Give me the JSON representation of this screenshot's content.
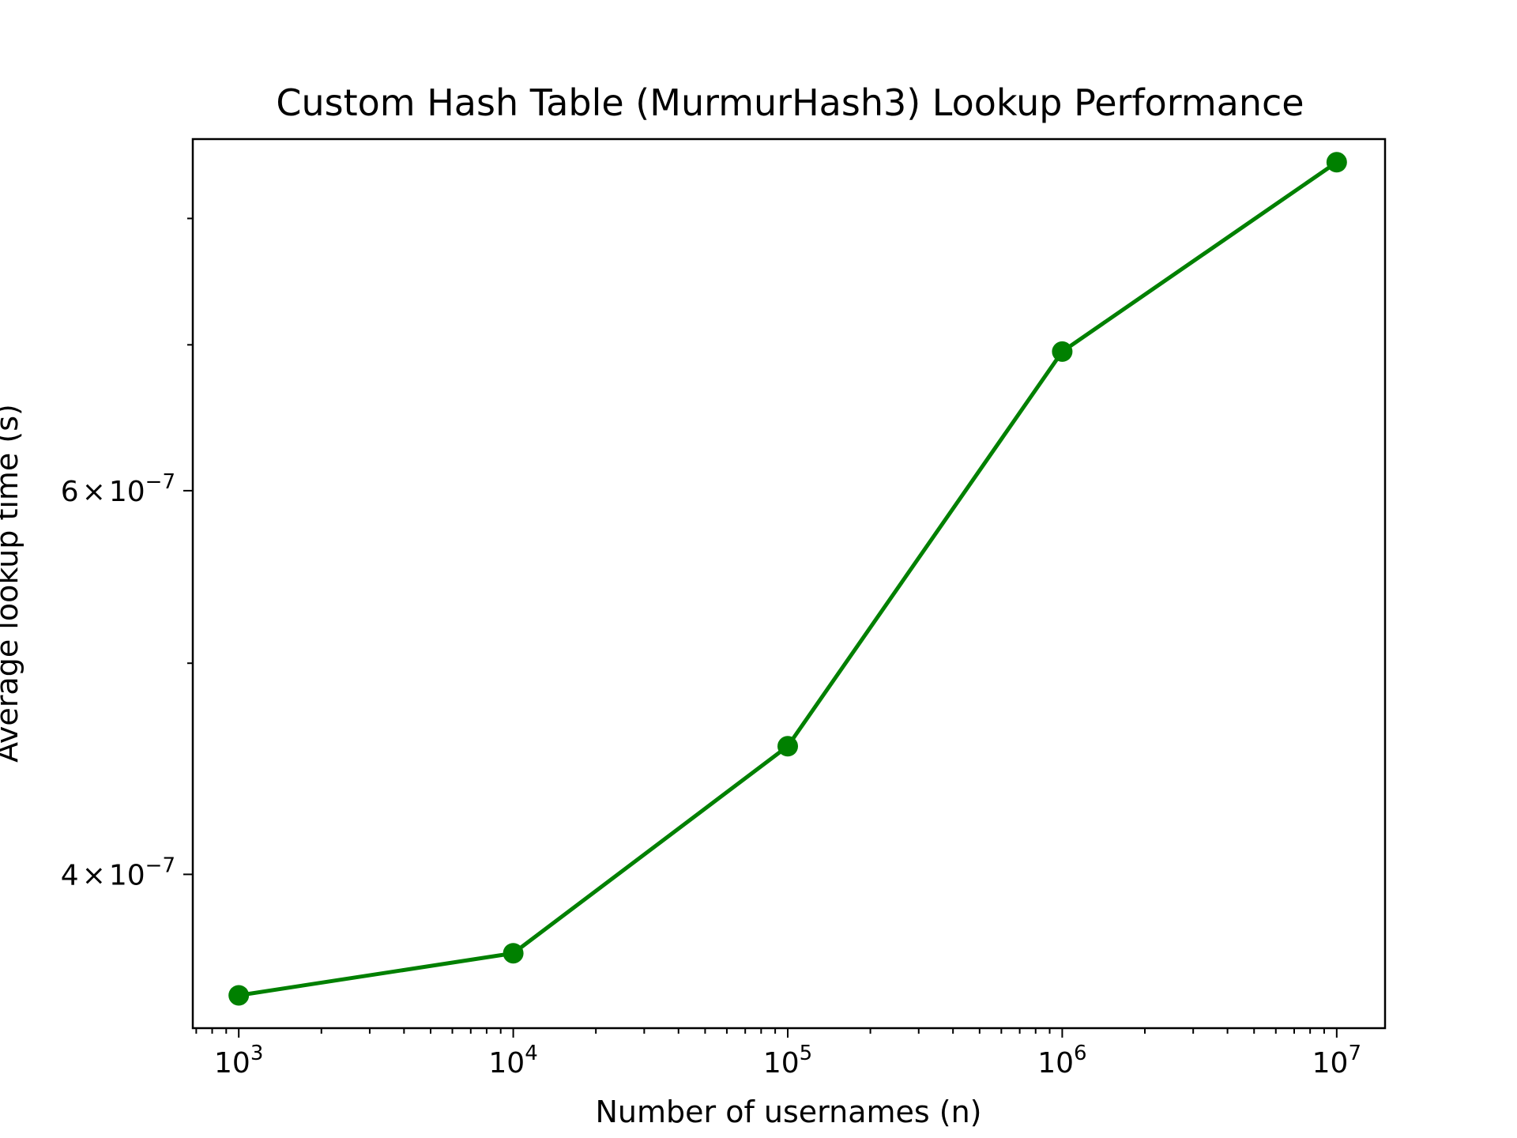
{
  "chart_data": {
    "type": "line",
    "title": "Custom Hash Table (MurmurHash3) Lookup Performance",
    "xlabel": "Number of usernames (n)",
    "ylabel": "Average lookup time (s)",
    "x_scale": "log",
    "y_scale": "log",
    "xlim": [
      680,
      15000000
    ],
    "ylim": [
      3.4e-07,
      8.7e-07
    ],
    "x_ticks": [
      {
        "value": 1000,
        "base": "10",
        "exp": "3"
      },
      {
        "value": 10000,
        "base": "10",
        "exp": "4"
      },
      {
        "value": 100000,
        "base": "10",
        "exp": "5"
      },
      {
        "value": 1000000,
        "base": "10",
        "exp": "6"
      },
      {
        "value": 10000000,
        "base": "10",
        "exp": "7"
      }
    ],
    "y_ticks": [
      {
        "value": 4e-07,
        "mantissa": "4",
        "times": "×",
        "base": "10",
        "exp": "−7"
      },
      {
        "value": 6e-07,
        "mantissa": "6",
        "times": "×",
        "base": "10",
        "exp": "−7"
      }
    ],
    "y_minor_ticks": [
      5e-07,
      7e-07,
      8e-07
    ],
    "grid": false,
    "series": [
      {
        "color": "#008000",
        "marker": "circle",
        "x": [
          1000,
          10000,
          100000,
          1000000,
          10000000
        ],
        "y": [
          3.52e-07,
          3.68e-07,
          4.58e-07,
          6.95e-07,
          8.49e-07
        ]
      }
    ]
  }
}
